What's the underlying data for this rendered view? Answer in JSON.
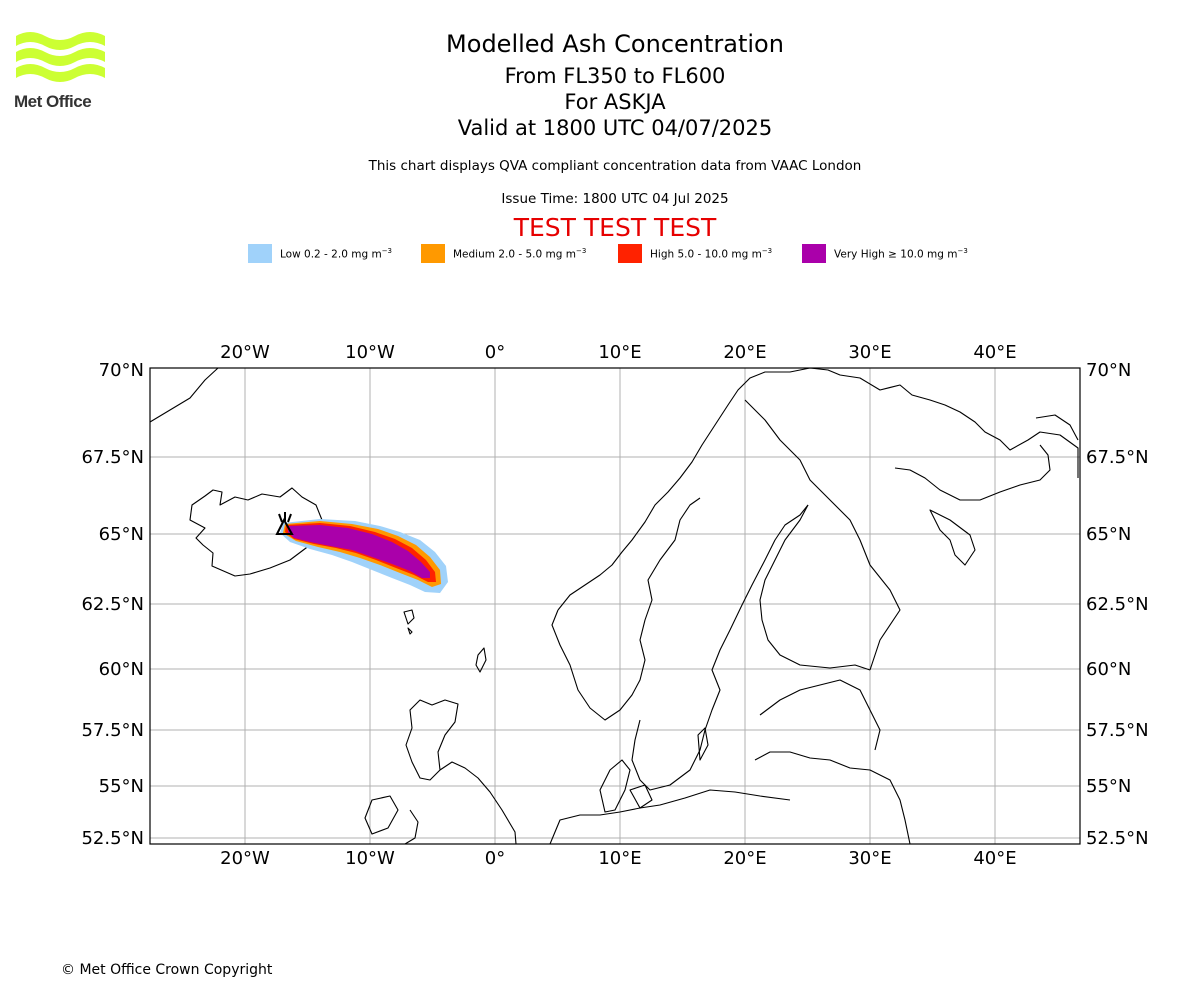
{
  "logo": {
    "brand": "Met Office",
    "color": "#ccff33"
  },
  "header": {
    "title": "Modelled Ash Concentration",
    "levels": "From FL350 to FL600",
    "volcano": "For ASKJA",
    "valid": "Valid at 1800 UTC 04/07/2025",
    "description": "This chart displays QVA compliant concentration data from VAAC London",
    "issue_time": "Issue Time: 1800 UTC 04 Jul 2025",
    "test_banner": "TEST TEST TEST"
  },
  "legend": [
    {
      "label": "Low 0.2 - 2.0 mg m",
      "exp": "−3",
      "color": "#a0d2fa"
    },
    {
      "label": "Medium 2.0 - 5.0 mg m",
      "exp": "−3",
      "color": "#ff9900"
    },
    {
      "label": "High 5.0 - 10.0 mg m",
      "exp": "−3",
      "color": "#ff2200"
    },
    {
      "label": "Very High  ≥  10.0 mg m",
      "exp": "−3",
      "color": "#aa00aa"
    }
  ],
  "map": {
    "lon_ticks": [
      "20°W",
      "10°W",
      "0°",
      "10°E",
      "20°E",
      "30°E",
      "40°E"
    ],
    "lat_ticks": [
      "70°N",
      "67.5°N",
      "65°N",
      "62.5°N",
      "60°N",
      "57.5°N",
      "55°N",
      "52.5°N"
    ],
    "extent": {
      "lon": [
        -27.5,
        46.5
      ],
      "lat": [
        52.4,
        70
      ]
    },
    "grid": true
  },
  "footer": {
    "copyright": "© Met Office Crown Copyright"
  }
}
